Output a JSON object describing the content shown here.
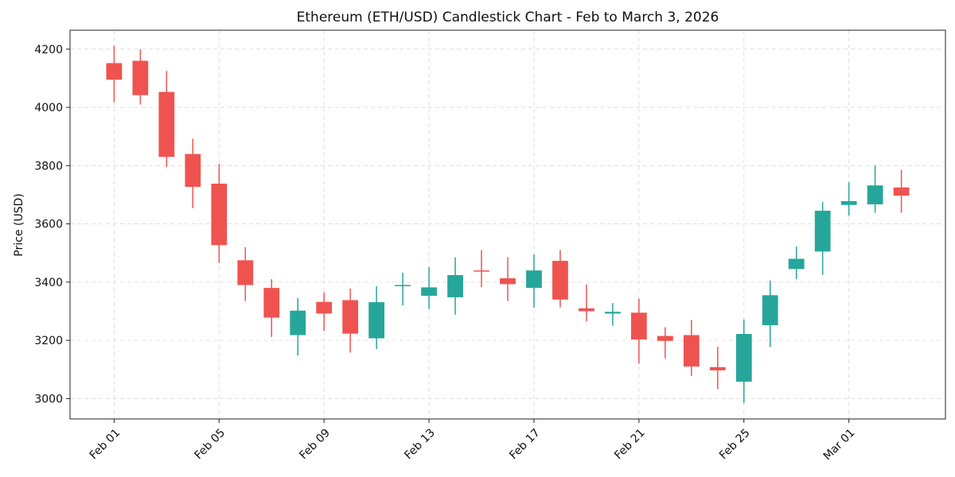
{
  "chart_data": {
    "type": "candlestick",
    "title": "Ethereum (ETH/USD) Candlestick Chart - Feb to March 3, 2026",
    "xlabel": "",
    "ylabel": "Price (USD)",
    "ylim": [
      2930,
      4265
    ],
    "yticks": [
      3000,
      3200,
      3400,
      3600,
      3800,
      4000,
      4200
    ],
    "x_tick_labels": [
      "Feb 01",
      "Feb 05",
      "Feb 09",
      "Feb 13",
      "Feb 17",
      "Feb 21",
      "Feb 25",
      "Mar 01"
    ],
    "x_tick_dates": [
      "2026-02-01",
      "2026-02-05",
      "2026-02-09",
      "2026-02-13",
      "2026-02-17",
      "2026-02-21",
      "2026-02-25",
      "2026-03-01"
    ],
    "grid": true,
    "colors": {
      "up": "#26a69a",
      "down": "#ef5350"
    },
    "candles": [
      {
        "date": "2026-02-01",
        "open": 4152,
        "high": 4212,
        "low": 4018,
        "close": 4095
      },
      {
        "date": "2026-02-02",
        "open": 4160,
        "high": 4200,
        "low": 4010,
        "close": 4042
      },
      {
        "date": "2026-02-03",
        "open": 4053,
        "high": 4125,
        "low": 3795,
        "close": 3830
      },
      {
        "date": "2026-02-04",
        "open": 3840,
        "high": 3892,
        "low": 3654,
        "close": 3727
      },
      {
        "date": "2026-02-05",
        "open": 3738,
        "high": 3806,
        "low": 3466,
        "close": 3527
      },
      {
        "date": "2026-02-06",
        "open": 3475,
        "high": 3520,
        "low": 3335,
        "close": 3390
      },
      {
        "date": "2026-02-07",
        "open": 3380,
        "high": 3410,
        "low": 3212,
        "close": 3278
      },
      {
        "date": "2026-02-08",
        "open": 3218,
        "high": 3345,
        "low": 3148,
        "close": 3302
      },
      {
        "date": "2026-02-09",
        "open": 3332,
        "high": 3365,
        "low": 3233,
        "close": 3292
      },
      {
        "date": "2026-02-10",
        "open": 3338,
        "high": 3378,
        "low": 3158,
        "close": 3223
      },
      {
        "date": "2026-02-11",
        "open": 3207,
        "high": 3386,
        "low": 3170,
        "close": 3331
      },
      {
        "date": "2026-02-12",
        "open": 3387,
        "high": 3432,
        "low": 3320,
        "close": 3390
      },
      {
        "date": "2026-02-13",
        "open": 3353,
        "high": 3452,
        "low": 3308,
        "close": 3382
      },
      {
        "date": "2026-02-14",
        "open": 3348,
        "high": 3485,
        "low": 3288,
        "close": 3424
      },
      {
        "date": "2026-02-15",
        "open": 3440,
        "high": 3510,
        "low": 3383,
        "close": 3438
      },
      {
        "date": "2026-02-16",
        "open": 3413,
        "high": 3485,
        "low": 3335,
        "close": 3393
      },
      {
        "date": "2026-02-17",
        "open": 3380,
        "high": 3495,
        "low": 3312,
        "close": 3440
      },
      {
        "date": "2026-02-18",
        "open": 3473,
        "high": 3510,
        "low": 3313,
        "close": 3340
      },
      {
        "date": "2026-02-19",
        "open": 3310,
        "high": 3392,
        "low": 3265,
        "close": 3300
      },
      {
        "date": "2026-02-20",
        "open": 3292,
        "high": 3328,
        "low": 3250,
        "close": 3298
      },
      {
        "date": "2026-02-21",
        "open": 3295,
        "high": 3343,
        "low": 3120,
        "close": 3203
      },
      {
        "date": "2026-02-22",
        "open": 3215,
        "high": 3245,
        "low": 3138,
        "close": 3198
      },
      {
        "date": "2026-02-23",
        "open": 3218,
        "high": 3270,
        "low": 3078,
        "close": 3110
      },
      {
        "date": "2026-02-24",
        "open": 3108,
        "high": 3178,
        "low": 3032,
        "close": 3097
      },
      {
        "date": "2026-02-25",
        "open": 3058,
        "high": 3272,
        "low": 2985,
        "close": 3222
      },
      {
        "date": "2026-02-26",
        "open": 3252,
        "high": 3405,
        "low": 3177,
        "close": 3355
      },
      {
        "date": "2026-02-27",
        "open": 3445,
        "high": 3522,
        "low": 3410,
        "close": 3480
      },
      {
        "date": "2026-02-28",
        "open": 3505,
        "high": 3675,
        "low": 3425,
        "close": 3645
      },
      {
        "date": "2026-03-01",
        "open": 3665,
        "high": 3743,
        "low": 3628,
        "close": 3678
      },
      {
        "date": "2026-03-02",
        "open": 3667,
        "high": 3800,
        "low": 3638,
        "close": 3732
      },
      {
        "date": "2026-03-03",
        "open": 3725,
        "high": 3785,
        "low": 3638,
        "close": 3697
      }
    ]
  }
}
